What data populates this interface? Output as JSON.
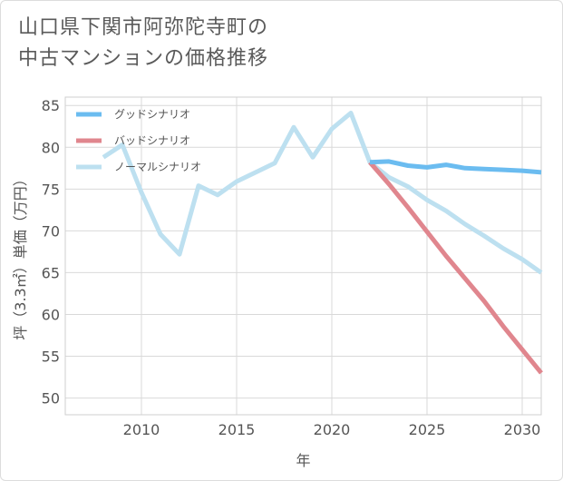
{
  "title": {
    "line1": "山口県下関市阿弥陀寺町の",
    "line2": "中古マンションの価格推移"
  },
  "chart_data": {
    "type": "line",
    "title": "山口県下関市阿弥陀寺町の中古マンションの価格推移",
    "xlabel": "年",
    "ylabel": "坪（3.3㎡）単価（万円）",
    "xlim": [
      2006,
      2031
    ],
    "ylim": [
      48,
      86
    ],
    "xticks": [
      2010,
      2015,
      2020,
      2025,
      2030
    ],
    "yticks": [
      50,
      55,
      60,
      65,
      70,
      75,
      80,
      85
    ],
    "grid": true,
    "legend_position": "top-left",
    "series": [
      {
        "name": "グッドシナリオ",
        "color": "#6bbcf0",
        "x": [
          2022,
          2023,
          2024,
          2025,
          2026,
          2027,
          2028,
          2029,
          2030,
          2031
        ],
        "y": [
          78.2,
          78.3,
          77.8,
          77.6,
          77.9,
          77.5,
          77.4,
          77.3,
          77.2,
          77.0
        ]
      },
      {
        "name": "バッドシナリオ",
        "color": "#e0868e",
        "x": [
          2022,
          2023,
          2024,
          2025,
          2026,
          2027,
          2028,
          2029,
          2030,
          2031
        ],
        "y": [
          78.2,
          75.6,
          72.8,
          69.9,
          67.0,
          64.3,
          61.6,
          58.6,
          55.8,
          53.0
        ]
      },
      {
        "name": "ノーマルシナリオ",
        "color": "#bde0f0",
        "x": [
          2008,
          2009,
          2010,
          2011,
          2012,
          2013,
          2014,
          2015,
          2016,
          2017,
          2018,
          2019,
          2020,
          2021,
          2022,
          2023,
          2024,
          2025,
          2026,
          2027,
          2028,
          2029,
          2030,
          2031
        ],
        "y": [
          78.8,
          80.3,
          74.6,
          69.6,
          67.2,
          75.4,
          74.3,
          75.9,
          77.0,
          78.1,
          82.4,
          78.8,
          82.2,
          84.1,
          78.2,
          76.4,
          75.3,
          73.7,
          72.4,
          70.8,
          69.4,
          67.9,
          66.6,
          65.0
        ]
      }
    ]
  }
}
